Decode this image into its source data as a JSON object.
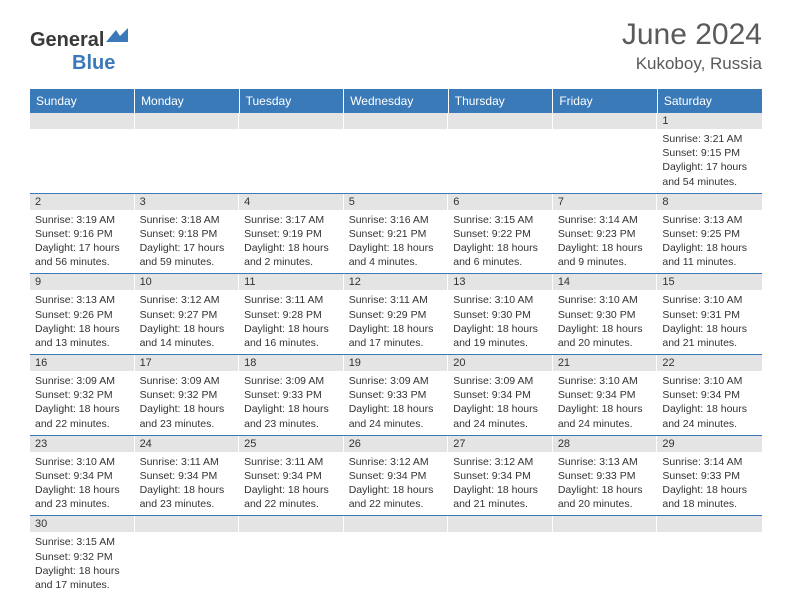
{
  "brand": {
    "name1": "General",
    "name2": "Blue"
  },
  "title": "June 2024",
  "location": "Kukoboy, Russia",
  "colors": {
    "header_bg": "#3a7ab8",
    "header_text": "#ffffff",
    "daynum_bg": "#e4e4e4",
    "border": "#3a7ab8",
    "text": "#333333",
    "title_text": "#5a5a5a"
  },
  "calendar": {
    "columns": [
      "Sunday",
      "Monday",
      "Tuesday",
      "Wednesday",
      "Thursday",
      "Friday",
      "Saturday"
    ],
    "weeks": [
      [
        null,
        null,
        null,
        null,
        null,
        null,
        {
          "n": "1",
          "sr": "3:21 AM",
          "ss": "9:15 PM",
          "dl": "17 hours and 54 minutes."
        }
      ],
      [
        {
          "n": "2",
          "sr": "3:19 AM",
          "ss": "9:16 PM",
          "dl": "17 hours and 56 minutes."
        },
        {
          "n": "3",
          "sr": "3:18 AM",
          "ss": "9:18 PM",
          "dl": "17 hours and 59 minutes."
        },
        {
          "n": "4",
          "sr": "3:17 AM",
          "ss": "9:19 PM",
          "dl": "18 hours and 2 minutes."
        },
        {
          "n": "5",
          "sr": "3:16 AM",
          "ss": "9:21 PM",
          "dl": "18 hours and 4 minutes."
        },
        {
          "n": "6",
          "sr": "3:15 AM",
          "ss": "9:22 PM",
          "dl": "18 hours and 6 minutes."
        },
        {
          "n": "7",
          "sr": "3:14 AM",
          "ss": "9:23 PM",
          "dl": "18 hours and 9 minutes."
        },
        {
          "n": "8",
          "sr": "3:13 AM",
          "ss": "9:25 PM",
          "dl": "18 hours and 11 minutes."
        }
      ],
      [
        {
          "n": "9",
          "sr": "3:13 AM",
          "ss": "9:26 PM",
          "dl": "18 hours and 13 minutes."
        },
        {
          "n": "10",
          "sr": "3:12 AM",
          "ss": "9:27 PM",
          "dl": "18 hours and 14 minutes."
        },
        {
          "n": "11",
          "sr": "3:11 AM",
          "ss": "9:28 PM",
          "dl": "18 hours and 16 minutes."
        },
        {
          "n": "12",
          "sr": "3:11 AM",
          "ss": "9:29 PM",
          "dl": "18 hours and 17 minutes."
        },
        {
          "n": "13",
          "sr": "3:10 AM",
          "ss": "9:30 PM",
          "dl": "18 hours and 19 minutes."
        },
        {
          "n": "14",
          "sr": "3:10 AM",
          "ss": "9:30 PM",
          "dl": "18 hours and 20 minutes."
        },
        {
          "n": "15",
          "sr": "3:10 AM",
          "ss": "9:31 PM",
          "dl": "18 hours and 21 minutes."
        }
      ],
      [
        {
          "n": "16",
          "sr": "3:09 AM",
          "ss": "9:32 PM",
          "dl": "18 hours and 22 minutes."
        },
        {
          "n": "17",
          "sr": "3:09 AM",
          "ss": "9:32 PM",
          "dl": "18 hours and 23 minutes."
        },
        {
          "n": "18",
          "sr": "3:09 AM",
          "ss": "9:33 PM",
          "dl": "18 hours and 23 minutes."
        },
        {
          "n": "19",
          "sr": "3:09 AM",
          "ss": "9:33 PM",
          "dl": "18 hours and 24 minutes."
        },
        {
          "n": "20",
          "sr": "3:09 AM",
          "ss": "9:34 PM",
          "dl": "18 hours and 24 minutes."
        },
        {
          "n": "21",
          "sr": "3:10 AM",
          "ss": "9:34 PM",
          "dl": "18 hours and 24 minutes."
        },
        {
          "n": "22",
          "sr": "3:10 AM",
          "ss": "9:34 PM",
          "dl": "18 hours and 24 minutes."
        }
      ],
      [
        {
          "n": "23",
          "sr": "3:10 AM",
          "ss": "9:34 PM",
          "dl": "18 hours and 23 minutes."
        },
        {
          "n": "24",
          "sr": "3:11 AM",
          "ss": "9:34 PM",
          "dl": "18 hours and 23 minutes."
        },
        {
          "n": "25",
          "sr": "3:11 AM",
          "ss": "9:34 PM",
          "dl": "18 hours and 22 minutes."
        },
        {
          "n": "26",
          "sr": "3:12 AM",
          "ss": "9:34 PM",
          "dl": "18 hours and 22 minutes."
        },
        {
          "n": "27",
          "sr": "3:12 AM",
          "ss": "9:34 PM",
          "dl": "18 hours and 21 minutes."
        },
        {
          "n": "28",
          "sr": "3:13 AM",
          "ss": "9:33 PM",
          "dl": "18 hours and 20 minutes."
        },
        {
          "n": "29",
          "sr": "3:14 AM",
          "ss": "9:33 PM",
          "dl": "18 hours and 18 minutes."
        }
      ],
      [
        {
          "n": "30",
          "sr": "3:15 AM",
          "ss": "9:32 PM",
          "dl": "18 hours and 17 minutes."
        },
        null,
        null,
        null,
        null,
        null,
        null
      ]
    ]
  },
  "labels": {
    "sunrise": "Sunrise:",
    "sunset": "Sunset:",
    "daylight": "Daylight:"
  }
}
